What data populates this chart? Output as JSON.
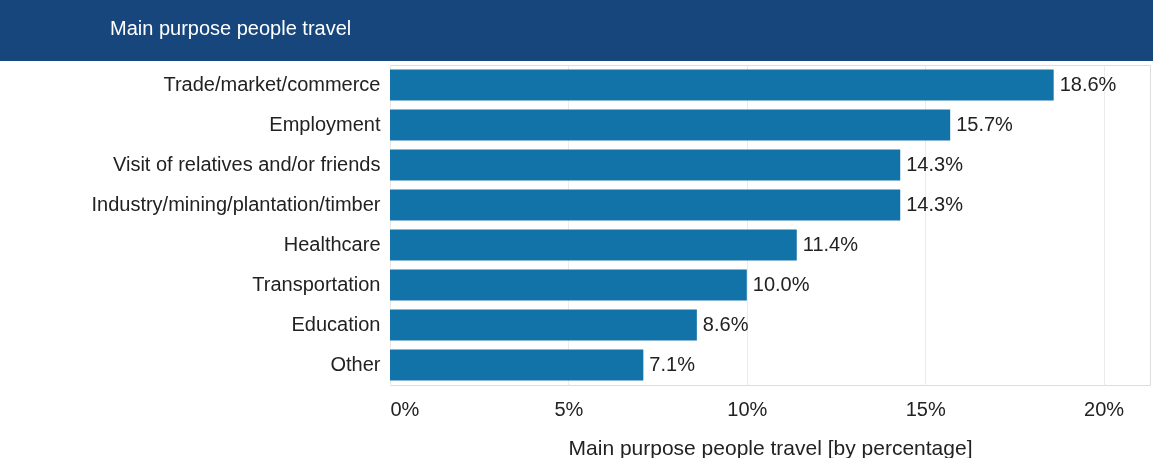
{
  "chart_data": {
    "type": "bar",
    "orientation": "horizontal",
    "title": "Main purpose people travel",
    "xlabel": "Main purpose people travel [by percentage]",
    "categories": [
      "Trade/market/commerce",
      "Employment",
      "Visit of relatives and/or friends",
      "Industry/mining/plantation/timber",
      "Healthcare",
      "Transportation",
      "Education",
      "Other"
    ],
    "values": [
      18.6,
      15.7,
      14.3,
      14.3,
      11.4,
      10.0,
      8.6,
      7.1
    ],
    "value_labels": [
      "18.6%",
      "15.7%",
      "14.3%",
      "14.3%",
      "11.4%",
      "10.0%",
      "8.6%",
      "7.1%"
    ],
    "color": "#1273a8",
    "xlim": [
      0,
      21.3
    ],
    "xticks": [
      {
        "value": 0,
        "label": "0%"
      },
      {
        "value": 5,
        "label": "5%"
      },
      {
        "value": 10,
        "label": "10%"
      },
      {
        "value": 15,
        "label": "15%"
      },
      {
        "value": 20,
        "label": "20%"
      }
    ],
    "grid": "x"
  }
}
